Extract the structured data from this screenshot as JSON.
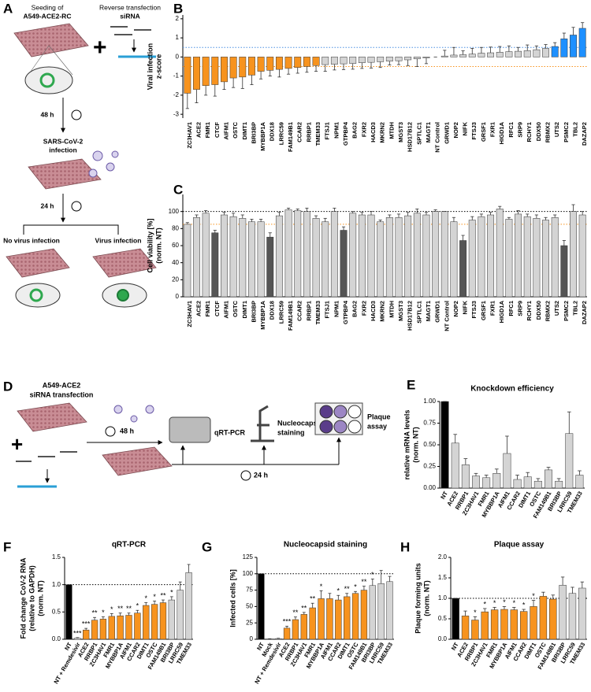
{
  "chart_data": [
    {
      "type": "bar",
      "panel": "B",
      "ylabel": [
        "Viral infection",
        "z-score"
      ],
      "categories": [
        "ZC3HAV1",
        "ACE2",
        "FMR1",
        "CTCF",
        "AIFM1",
        "OSTC",
        "DIMT1",
        "BRI3BP",
        "MYBBP1A",
        "DDX18",
        "LRRC59",
        "FAM149B1",
        "CCAR2",
        "RRBP1",
        "TMEM33",
        "FTSJ1",
        "NPM1",
        "GTPBP4",
        "BAG2",
        "FXR2",
        "HACD3",
        "MKRN2",
        "MTDH",
        "MGST3",
        "HSD17B12",
        "SPTLC1",
        "MAGT1",
        "NT Control",
        "GRWD1",
        "NOP2",
        "NIFK",
        "FTSJ3",
        "GRSF1",
        "FXR1",
        "HIGD1A",
        "RFC1",
        "SRP9",
        "RCHY1",
        "DDX50",
        "RBMX2",
        "UTS2",
        "PSMC2",
        "TBL2",
        "DAZAP2"
      ],
      "values": [
        -1.9,
        -1.7,
        -1.5,
        -1.45,
        -1.3,
        -1.1,
        -1.05,
        -0.95,
        -0.75,
        -0.7,
        -0.65,
        -0.6,
        -0.55,
        -0.5,
        -0.45,
        -0.4,
        -0.38,
        -0.36,
        -0.34,
        -0.3,
        -0.28,
        -0.25,
        -0.22,
        -0.2,
        -0.15,
        -0.1,
        -0.05,
        0,
        0.05,
        0.1,
        0.12,
        0.15,
        0.2,
        0.22,
        0.25,
        0.28,
        0.3,
        0.33,
        0.38,
        0.45,
        0.55,
        0.95,
        1.15,
        1.5
      ],
      "errors": [
        0.8,
        0.7,
        0.5,
        0.6,
        0.4,
        0.5,
        0.6,
        0.5,
        0.4,
        0.3,
        0.4,
        0.3,
        0.3,
        0.3,
        0.3,
        0.35,
        0.3,
        0.3,
        0.3,
        0.3,
        0.3,
        0.3,
        0.2,
        0.2,
        0.3,
        0.4,
        0.3,
        0,
        0.3,
        0.4,
        0.2,
        0.3,
        0.3,
        0.3,
        0.3,
        0.3,
        0.2,
        0.3,
        0.2,
        0.2,
        0.2,
        0.3,
        0.4,
        0.3
      ],
      "colors": [
        "#f7931e",
        "#f7931e",
        "#f7931e",
        "#f7931e",
        "#f7931e",
        "#f7931e",
        "#f7931e",
        "#f7931e",
        "#f7931e",
        "#f7931e",
        "#f7931e",
        "#f7931e",
        "#f7931e",
        "#f7931e",
        "#f7931e",
        "#d4d4d4",
        "#d4d4d4",
        "#d4d4d4",
        "#d4d4d4",
        "#d4d4d4",
        "#d4d4d4",
        "#d4d4d4",
        "#d4d4d4",
        "#d4d4d4",
        "#d4d4d4",
        "#d4d4d4",
        "#d4d4d4",
        "#d4d4d4",
        "#d4d4d4",
        "#d4d4d4",
        "#d4d4d4",
        "#d4d4d4",
        "#d4d4d4",
        "#d4d4d4",
        "#d4d4d4",
        "#d4d4d4",
        "#d4d4d4",
        "#d4d4d4",
        "#d4d4d4",
        "#d4d4d4",
        "#1e90ff",
        "#1e90ff",
        "#1e90ff",
        "#1e90ff"
      ],
      "highlight_index": 27,
      "highlight_color": "#2ca02c",
      "ylim": [
        -3.2,
        2.2
      ],
      "yticks": [
        -3,
        -2,
        -1,
        0,
        1,
        2
      ],
      "hlines": [
        {
          "value": 0.5,
          "color": "#4a90e2"
        },
        {
          "value": -0.5,
          "color": "#f7931e"
        }
      ]
    },
    {
      "type": "bar",
      "panel": "C",
      "ylabel": [
        "Cell viability [%]",
        "(norm. NT)"
      ],
      "categories": [
        "ZC3HAV1",
        "ACE2",
        "FMR1",
        "CTCF",
        "AIFM1",
        "OSTC",
        "DIMT1",
        "BRI3BP",
        "MYBBP1A",
        "DDX18",
        "LRRC59",
        "FAM149B1",
        "CCAR2",
        "RRBP1",
        "TMEM33",
        "FTSJ1",
        "NPM1",
        "GTPBP4",
        "BAG2",
        "FXR2",
        "HACD3",
        "MKRN2",
        "MTDH",
        "MGST3",
        "HSD17B12",
        "SPTLC1",
        "MAGT1",
        "GRWD1",
        "NT Control",
        "NOP2",
        "NIFK",
        "FTSJ3",
        "GRSF1",
        "FXR1",
        "HIGD1A",
        "RFC1",
        "SRP9",
        "RCHY1",
        "DDX50",
        "RBMX2",
        "UTS2",
        "PSMC2",
        "TBL2",
        "DAZAP2"
      ],
      "values": [
        85,
        93,
        98,
        75,
        96,
        94,
        92,
        88,
        88,
        70,
        95,
        102,
        101,
        100,
        92,
        88,
        100,
        78,
        98,
        96,
        96,
        88,
        93,
        93,
        95,
        98,
        96,
        100,
        100,
        88,
        66,
        90,
        94,
        96,
        103,
        91,
        97,
        94,
        92,
        90,
        93,
        60,
        100,
        96
      ],
      "errors": [
        2,
        3,
        3,
        3,
        3,
        4,
        4,
        3,
        3,
        5,
        4,
        2,
        2,
        4,
        3,
        4,
        4,
        4,
        2,
        3,
        4,
        2,
        3,
        4,
        4,
        5,
        3,
        2,
        0,
        5,
        6,
        4,
        3,
        3,
        3,
        2,
        4,
        3,
        4,
        3,
        3,
        6,
        8,
        4
      ],
      "colors": [
        "#d4d4d4",
        "#d4d4d4",
        "#d4d4d4",
        "#555555",
        "#d4d4d4",
        "#d4d4d4",
        "#d4d4d4",
        "#d4d4d4",
        "#d4d4d4",
        "#555555",
        "#d4d4d4",
        "#d4d4d4",
        "#d4d4d4",
        "#d4d4d4",
        "#d4d4d4",
        "#d4d4d4",
        "#d4d4d4",
        "#555555",
        "#d4d4d4",
        "#d4d4d4",
        "#d4d4d4",
        "#d4d4d4",
        "#d4d4d4",
        "#d4d4d4",
        "#d4d4d4",
        "#d4d4d4",
        "#d4d4d4",
        "#d4d4d4",
        "#d4d4d4",
        "#d4d4d4",
        "#555555",
        "#d4d4d4",
        "#d4d4d4",
        "#d4d4d4",
        "#d4d4d4",
        "#d4d4d4",
        "#d4d4d4",
        "#d4d4d4",
        "#d4d4d4",
        "#d4d4d4",
        "#d4d4d4",
        "#555555",
        "#d4d4d4",
        "#d4d4d4"
      ],
      "highlight_index": 28,
      "highlight_color": "#2ca02c",
      "ylim": [
        0,
        120
      ],
      "yticks": [
        0,
        20,
        40,
        60,
        80,
        100
      ],
      "hlines": [
        {
          "value": 100,
          "color": "#000000"
        },
        {
          "value": 85,
          "color": "#f7931e"
        }
      ]
    },
    {
      "type": "bar",
      "panel": "E",
      "title": "Knockdown efficiency",
      "ylabel": [
        "relative mRNA levels",
        "(norm. NT)"
      ],
      "categories": [
        "NT",
        "ACE2",
        "RRBP1",
        "ZC3HAV1",
        "FMR1",
        "MYBBP1A",
        "AIFM1",
        "CCAR2",
        "DIMT1",
        "OSTC",
        "FAM149B1",
        "BRI3BP",
        "LRRC59",
        "TMEM33"
      ],
      "values": [
        1.0,
        0.52,
        0.27,
        0.14,
        0.12,
        0.17,
        0.4,
        0.1,
        0.13,
        0.08,
        0.21,
        0.08,
        0.63,
        0.15
      ],
      "errors": [
        0,
        0.1,
        0.07,
        0.03,
        0.03,
        0.05,
        0.2,
        0.05,
        0.05,
        0.03,
        0.03,
        0.03,
        0.25,
        0.05
      ],
      "colors": [
        "#000000",
        "#d4d4d4",
        "#d4d4d4",
        "#d4d4d4",
        "#d4d4d4",
        "#d4d4d4",
        "#d4d4d4",
        "#d4d4d4",
        "#d4d4d4",
        "#d4d4d4",
        "#d4d4d4",
        "#d4d4d4",
        "#d4d4d4",
        "#d4d4d4"
      ],
      "ylim": [
        0,
        1
      ],
      "yticks": [
        {
          "value": 0,
          "label": "0.00"
        },
        0.25,
        {
          "value": 0.5,
          "label": "0.50"
        },
        0.75,
        {
          "value": 1,
          "label": "1.00"
        }
      ]
    },
    {
      "type": "bar",
      "panel": "F",
      "title": "qRT-PCR",
      "ylabel": [
        "Fold change CoV-2 RNA",
        "(relative to GAPDH)",
        "(norm. NT)"
      ],
      "categories": [
        "NT",
        "NT + Remdesivir",
        "ACE2",
        "RRBP1",
        "ZC3HAV1",
        "FMR1",
        "MYBBP1A",
        "AIFM1",
        "CCAR2",
        "DIMT1",
        "OSTC",
        "FAM149B1",
        "BRI3BP",
        "LRRC59",
        "TMEM33"
      ],
      "values": [
        1.0,
        0.02,
        0.17,
        0.35,
        0.37,
        0.42,
        0.43,
        0.44,
        0.48,
        0.62,
        0.64,
        0.67,
        0.72,
        0.9,
        1.22
      ],
      "errors": [
        0,
        0.01,
        0.03,
        0.05,
        0.04,
        0.05,
        0.05,
        0.04,
        0.05,
        0.05,
        0.06,
        0.05,
        0.06,
        0.15,
        0.15
      ],
      "colors": [
        "#000000",
        "#ffffff",
        "#f7931e",
        "#f7931e",
        "#f7931e",
        "#f7931e",
        "#f7931e",
        "#f7931e",
        "#f7931e",
        "#f7931e",
        "#f7931e",
        "#f7931e",
        "#d4d4d4",
        "#d4d4d4",
        "#d4d4d4"
      ],
      "stars": [
        null,
        "***",
        "***",
        "**",
        "*",
        "*",
        "**",
        "**",
        "*",
        "*",
        "*",
        "**",
        "*",
        null,
        null
      ],
      "ylim": [
        0,
        1.5
      ],
      "yticks": [
        {
          "value": 0,
          "label": "0.0"
        },
        0.5,
        {
          "value": 1,
          "label": "1.0"
        },
        1.5
      ],
      "hlines": [
        {
          "value": 1,
          "color": "#000000"
        }
      ]
    },
    {
      "type": "bar",
      "panel": "G",
      "title": "Nucleocapsid staining",
      "ylabel": [
        "Infected cells [%]"
      ],
      "categories": [
        "NT",
        "Mock",
        "NT + Remdesivir",
        "ACE2",
        "RRBP1",
        "ZC3HAV1",
        "FMR1",
        "MYBBP1A",
        "AIFM1",
        "CCAR2",
        "DIMT1",
        "OSTC",
        "FAM149B1",
        "BRI3BP",
        "LRRC59",
        "TMEM33"
      ],
      "values": [
        100,
        0.5,
        1,
        17,
        30,
        38,
        48,
        62,
        62,
        60,
        65,
        70,
        75,
        82,
        85,
        88
      ],
      "errors": [
        0,
        0.3,
        0.5,
        3,
        4,
        3,
        7,
        12,
        8,
        7,
        5,
        3,
        6,
        10,
        20,
        8
      ],
      "colors": [
        "#000000",
        "#ffffff",
        "#ffffff",
        "#f7931e",
        "#f7931e",
        "#f7931e",
        "#f7931e",
        "#f7931e",
        "#f7931e",
        "#f7931e",
        "#f7931e",
        "#f7931e",
        "#f7931e",
        "#d4d4d4",
        "#d4d4d4",
        "#d4d4d4"
      ],
      "stars": [
        null,
        null,
        null,
        "***",
        "**",
        "**",
        "**",
        "*",
        null,
        "*",
        "**",
        "*",
        "**",
        "*",
        null,
        null
      ],
      "ylim": [
        0,
        125
      ],
      "yticks": [
        0,
        25,
        50,
        75,
        100,
        125
      ],
      "hlines": [
        {
          "value": 100,
          "color": "#000000"
        }
      ]
    },
    {
      "type": "bar",
      "panel": "H",
      "title": "Plaque assay",
      "ylabel": [
        "Plaque forming units",
        "(norm. NT)"
      ],
      "categories": [
        "NT",
        "ACE2",
        "RRBP1",
        "ZC3HAV1",
        "FMR1",
        "MYBBP1A",
        "AIFM1",
        "CCAR2",
        "DIMT1",
        "OSTC",
        "FAM149B1",
        "BRI3BP",
        "LRRC59",
        "TMEM33"
      ],
      "values": [
        1.0,
        0.57,
        0.47,
        0.67,
        0.72,
        0.73,
        0.72,
        0.68,
        0.8,
        1.05,
        0.98,
        1.32,
        1.12,
        1.25
      ],
      "errors": [
        0,
        0.12,
        0.08,
        0.08,
        0.06,
        0.07,
        0.06,
        0.05,
        0.15,
        0.1,
        0.1,
        0.2,
        0.15,
        0.15
      ],
      "colors": [
        "#000000",
        "#f7931e",
        "#f7931e",
        "#f7931e",
        "#f7931e",
        "#f7931e",
        "#f7931e",
        "#f7931e",
        "#f7931e",
        "#f7931e",
        "#f7931e",
        "#d4d4d4",
        "#d4d4d4",
        "#d4d4d4"
      ],
      "stars": [
        null,
        null,
        "*",
        "*",
        "*",
        "*",
        "*",
        "*",
        "*",
        null,
        null,
        null,
        null,
        null
      ],
      "ylim": [
        0,
        2
      ],
      "yticks": [
        {
          "value": 0,
          "label": "0.0"
        },
        0.5,
        {
          "value": 1,
          "label": "1.0"
        },
        1.5,
        {
          "value": 2,
          "label": "2.0"
        }
      ],
      "hlines": [
        {
          "value": 1,
          "color": "#000000"
        }
      ]
    }
  ],
  "diagrams": {
    "A": {
      "panel": "A",
      "seeding": [
        "Seeding of",
        "A549-ACE2-RC"
      ],
      "transfection": [
        "Reverse transfection",
        "siRNA"
      ],
      "time1": "48 h",
      "infection": [
        "SARS-CoV-2",
        "infection"
      ],
      "time2": "24 h",
      "no_virus": "No virus infection",
      "virus": "Virus infection"
    },
    "D": {
      "panel": "D",
      "cells": [
        "A549-ACE2",
        "siRNA transfection"
      ],
      "time1": "48 h",
      "pcr": "qRT-PCR",
      "staining": [
        "Nucleocapsid",
        "staining"
      ],
      "plaque": [
        "Plaque",
        "assay"
      ],
      "time2": "24 h"
    }
  }
}
